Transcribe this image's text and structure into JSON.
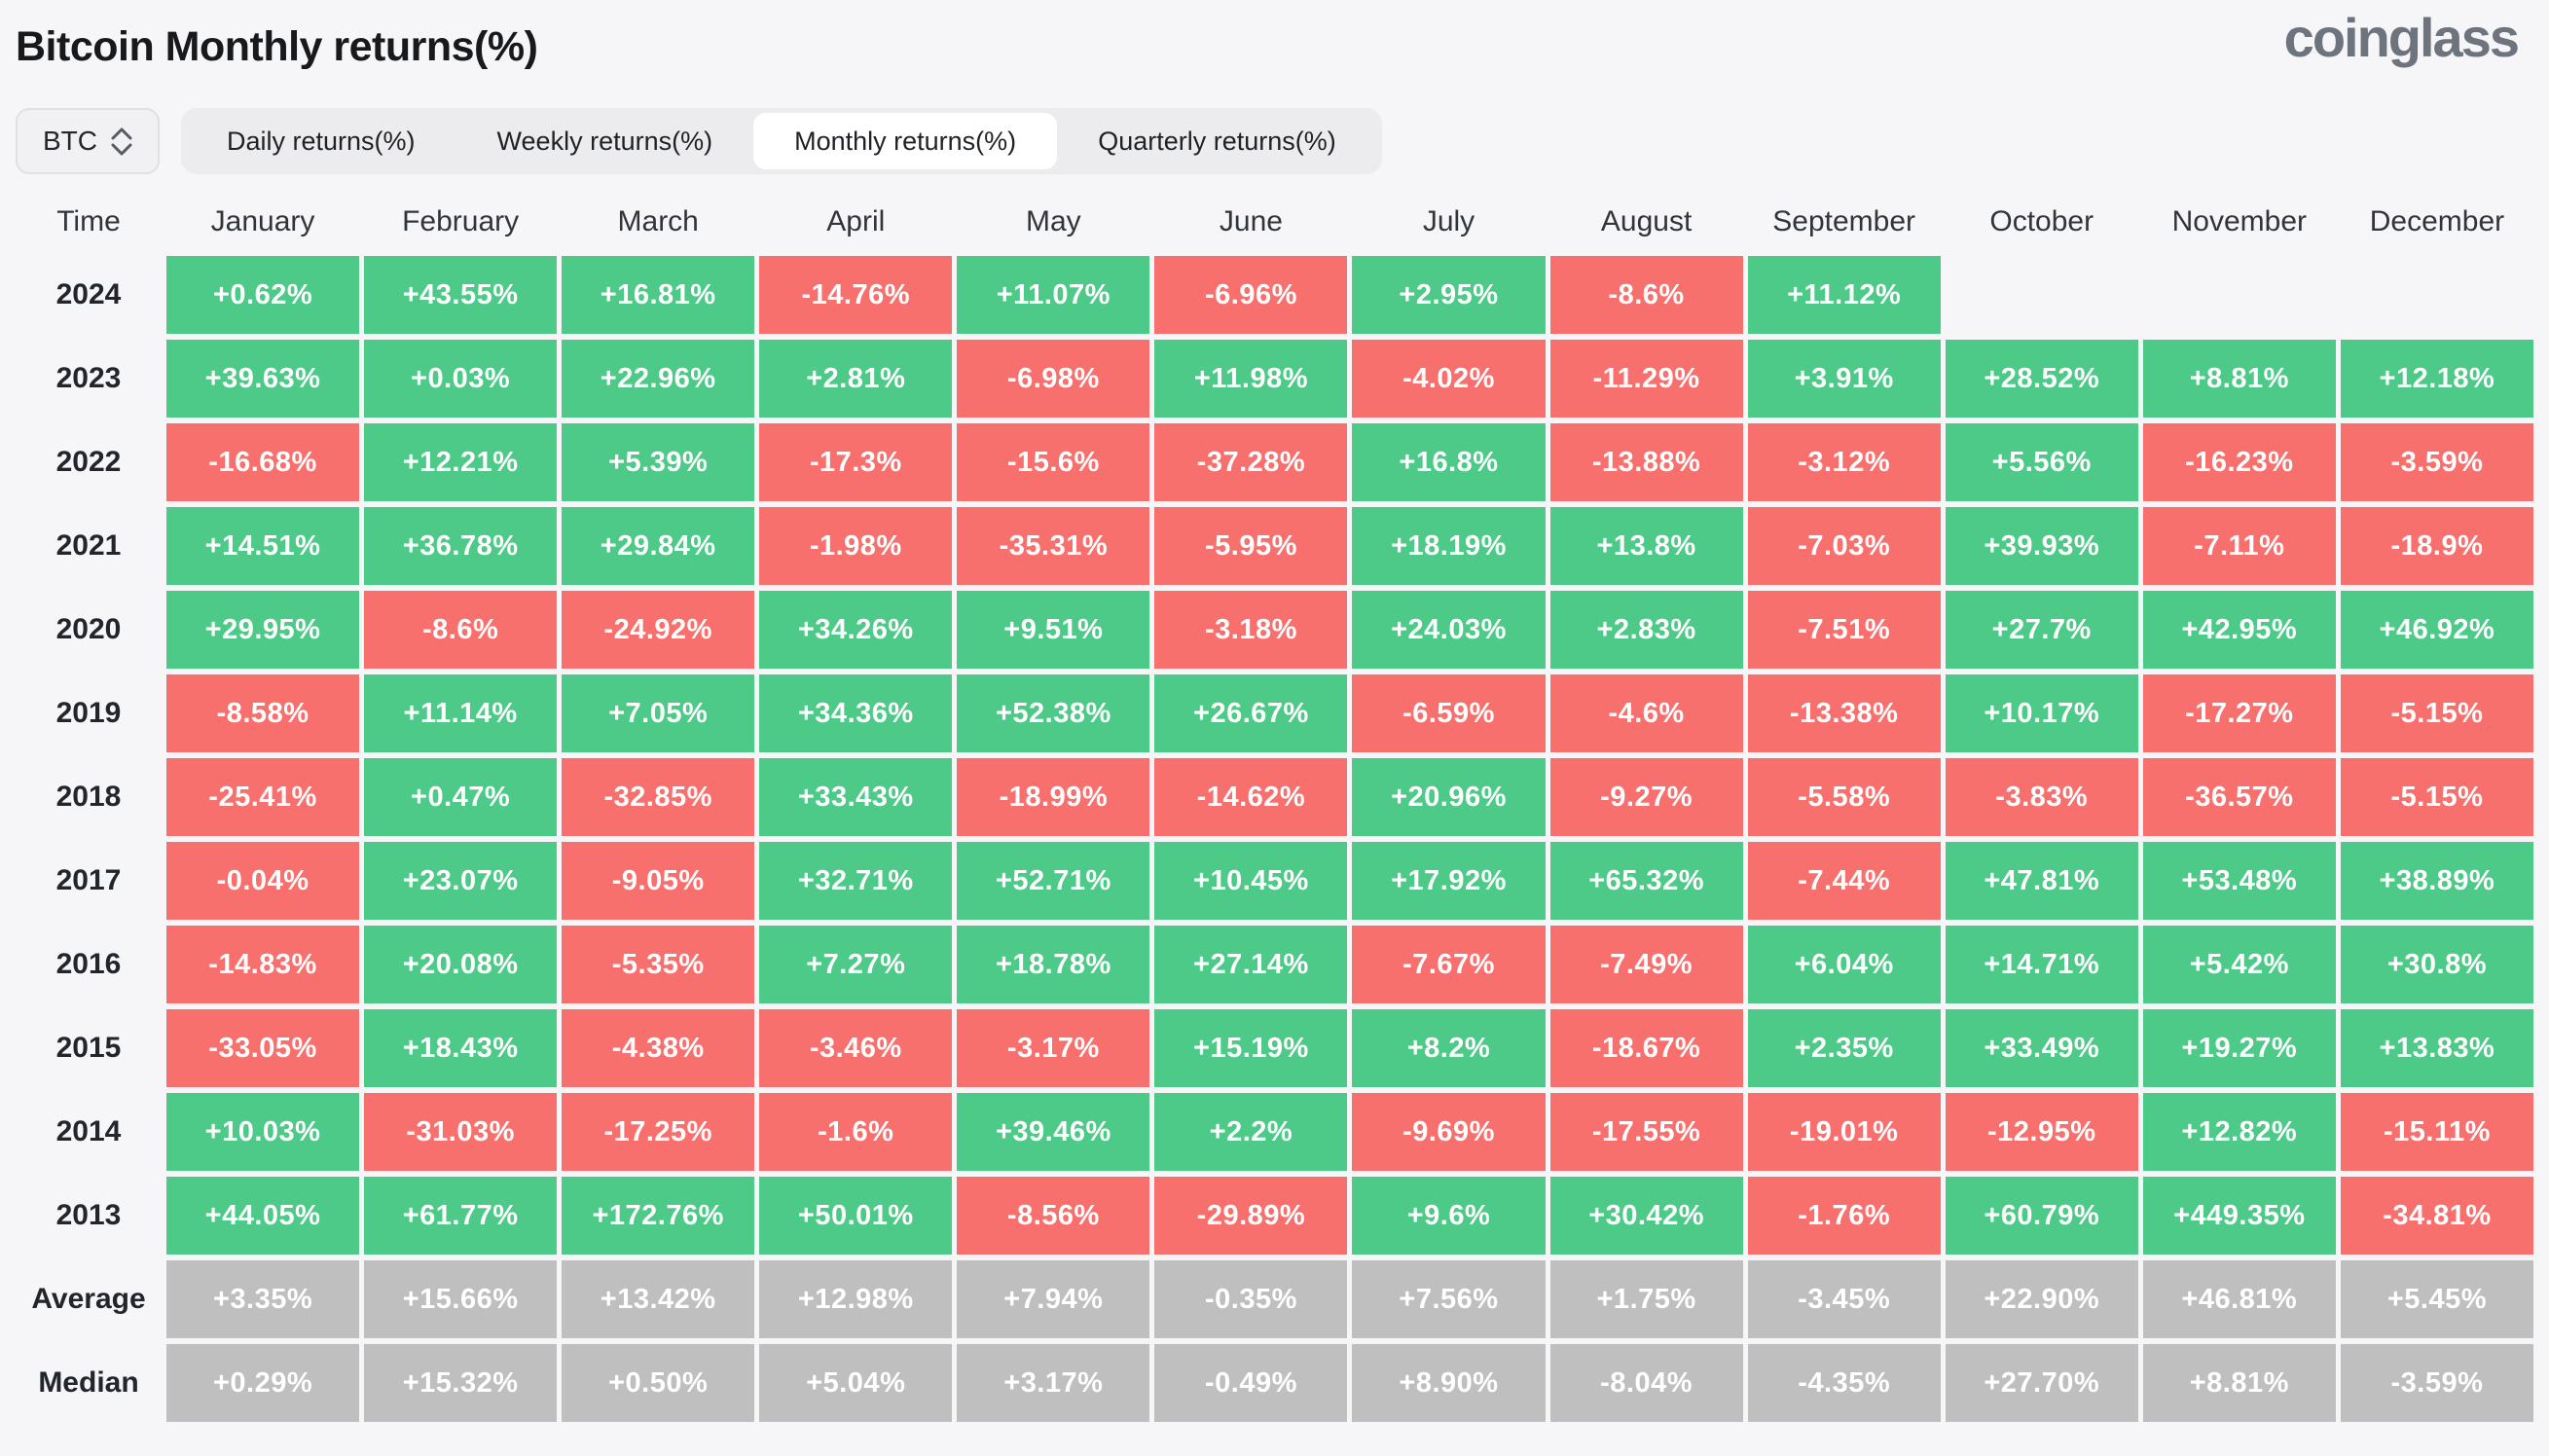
{
  "header": {
    "title": "Bitcoin Monthly returns(%)",
    "logo": "coinglass"
  },
  "controls": {
    "symbol": {
      "value": "BTC",
      "icon": "sort-updown"
    },
    "tabs": [
      {
        "label": "Daily returns(%)",
        "active": false
      },
      {
        "label": "Weekly returns(%)",
        "active": false
      },
      {
        "label": "Monthly returns(%)",
        "active": true
      },
      {
        "label": "Quarterly returns(%)",
        "active": false
      }
    ]
  },
  "colors": {
    "positive": "#4dca88",
    "negative": "#f8706e",
    "summary": "#bfbfbf",
    "background": "#f6f6f8"
  },
  "table": {
    "columns": [
      "Time",
      "January",
      "February",
      "March",
      "April",
      "May",
      "June",
      "July",
      "August",
      "September",
      "October",
      "November",
      "December"
    ],
    "rows": [
      {
        "label": "2024",
        "type": "year",
        "values": [
          "+0.62%",
          "+43.55%",
          "+16.81%",
          "-14.76%",
          "+11.07%",
          "-6.96%",
          "+2.95%",
          "-8.6%",
          "+11.12%",
          "",
          "",
          ""
        ]
      },
      {
        "label": "2023",
        "type": "year",
        "values": [
          "+39.63%",
          "+0.03%",
          "+22.96%",
          "+2.81%",
          "-6.98%",
          "+11.98%",
          "-4.02%",
          "-11.29%",
          "+3.91%",
          "+28.52%",
          "+8.81%",
          "+12.18%"
        ]
      },
      {
        "label": "2022",
        "type": "year",
        "values": [
          "-16.68%",
          "+12.21%",
          "+5.39%",
          "-17.3%",
          "-15.6%",
          "-37.28%",
          "+16.8%",
          "-13.88%",
          "-3.12%",
          "+5.56%",
          "-16.23%",
          "-3.59%"
        ]
      },
      {
        "label": "2021",
        "type": "year",
        "values": [
          "+14.51%",
          "+36.78%",
          "+29.84%",
          "-1.98%",
          "-35.31%",
          "-5.95%",
          "+18.19%",
          "+13.8%",
          "-7.03%",
          "+39.93%",
          "-7.11%",
          "-18.9%"
        ]
      },
      {
        "label": "2020",
        "type": "year",
        "values": [
          "+29.95%",
          "-8.6%",
          "-24.92%",
          "+34.26%",
          "+9.51%",
          "-3.18%",
          "+24.03%",
          "+2.83%",
          "-7.51%",
          "+27.7%",
          "+42.95%",
          "+46.92%"
        ]
      },
      {
        "label": "2019",
        "type": "year",
        "values": [
          "-8.58%",
          "+11.14%",
          "+7.05%",
          "+34.36%",
          "+52.38%",
          "+26.67%",
          "-6.59%",
          "-4.6%",
          "-13.38%",
          "+10.17%",
          "-17.27%",
          "-5.15%"
        ]
      },
      {
        "label": "2018",
        "type": "year",
        "values": [
          "-25.41%",
          "+0.47%",
          "-32.85%",
          "+33.43%",
          "-18.99%",
          "-14.62%",
          "+20.96%",
          "-9.27%",
          "-5.58%",
          "-3.83%",
          "-36.57%",
          "-5.15%"
        ]
      },
      {
        "label": "2017",
        "type": "year",
        "values": [
          "-0.04%",
          "+23.07%",
          "-9.05%",
          "+32.71%",
          "+52.71%",
          "+10.45%",
          "+17.92%",
          "+65.32%",
          "-7.44%",
          "+47.81%",
          "+53.48%",
          "+38.89%"
        ]
      },
      {
        "label": "2016",
        "type": "year",
        "values": [
          "-14.83%",
          "+20.08%",
          "-5.35%",
          "+7.27%",
          "+18.78%",
          "+27.14%",
          "-7.67%",
          "-7.49%",
          "+6.04%",
          "+14.71%",
          "+5.42%",
          "+30.8%"
        ]
      },
      {
        "label": "2015",
        "type": "year",
        "values": [
          "-33.05%",
          "+18.43%",
          "-4.38%",
          "-3.46%",
          "-3.17%",
          "+15.19%",
          "+8.2%",
          "-18.67%",
          "+2.35%",
          "+33.49%",
          "+19.27%",
          "+13.83%"
        ]
      },
      {
        "label": "2014",
        "type": "year",
        "values": [
          "+10.03%",
          "-31.03%",
          "-17.25%",
          "-1.6%",
          "+39.46%",
          "+2.2%",
          "-9.69%",
          "-17.55%",
          "-19.01%",
          "-12.95%",
          "+12.82%",
          "-15.11%"
        ]
      },
      {
        "label": "2013",
        "type": "year",
        "values": [
          "+44.05%",
          "+61.77%",
          "+172.76%",
          "+50.01%",
          "-8.56%",
          "-29.89%",
          "+9.6%",
          "+30.42%",
          "-1.76%",
          "+60.79%",
          "+449.35%",
          "-34.81%"
        ]
      },
      {
        "label": "Average",
        "type": "summary",
        "values": [
          "+3.35%",
          "+15.66%",
          "+13.42%",
          "+12.98%",
          "+7.94%",
          "-0.35%",
          "+7.56%",
          "+1.75%",
          "-3.45%",
          "+22.90%",
          "+46.81%",
          "+5.45%"
        ]
      },
      {
        "label": "Median",
        "type": "summary",
        "values": [
          "+0.29%",
          "+15.32%",
          "+0.50%",
          "+5.04%",
          "+3.17%",
          "-0.49%",
          "+8.90%",
          "-8.04%",
          "-4.35%",
          "+27.70%",
          "+8.81%",
          "-3.59%"
        ]
      }
    ]
  }
}
